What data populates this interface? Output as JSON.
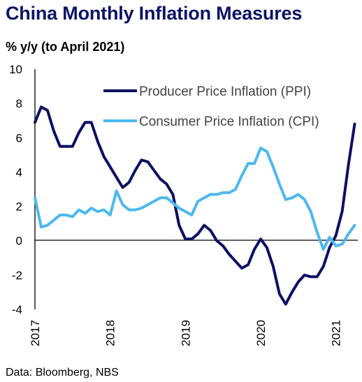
{
  "chart_data": {
    "type": "line",
    "title": "China Monthly Inflation Measures",
    "subtitle": "% y/y (to April 2021)",
    "source": "Data: Bloomberg, NBS",
    "ylim": [
      -4,
      10
    ],
    "yticks": [
      10,
      8,
      6,
      4,
      2,
      0,
      -2,
      -4
    ],
    "xlim": [
      0,
      51.5
    ],
    "xticks": [
      {
        "label": "2017",
        "index": 0
      },
      {
        "label": "2018",
        "index": 12
      },
      {
        "label": "2019",
        "index": 24
      },
      {
        "label": "2020",
        "index": 36
      },
      {
        "label": "2021",
        "index": 48
      }
    ],
    "grid": false,
    "legend_position": "top-right",
    "series": [
      {
        "name": "Producer Price Inflation (PPI)",
        "color": "#0d1063",
        "values": [
          6.9,
          7.8,
          7.6,
          6.4,
          5.5,
          5.5,
          5.5,
          6.3,
          6.9,
          6.9,
          5.8,
          4.9,
          4.3,
          3.7,
          3.1,
          3.4,
          4.1,
          4.7,
          4.6,
          4.1,
          3.6,
          3.3,
          2.7,
          0.9,
          0.1,
          0.1,
          0.4,
          0.9,
          0.6,
          0.0,
          -0.3,
          -0.8,
          -1.2,
          -1.6,
          -1.4,
          -0.5,
          0.1,
          -0.4,
          -1.5,
          -3.1,
          -3.7,
          -3.0,
          -2.4,
          -2.0,
          -2.1,
          -2.1,
          -1.5,
          -0.4,
          0.3,
          1.7,
          4.4,
          6.8
        ]
      },
      {
        "name": "Consumer Price Inflation (CPI)",
        "color": "#4db8f0",
        "values": [
          2.5,
          0.8,
          0.9,
          1.2,
          1.5,
          1.5,
          1.4,
          1.8,
          1.6,
          1.9,
          1.7,
          1.8,
          1.5,
          2.9,
          2.1,
          1.8,
          1.8,
          1.9,
          2.1,
          2.3,
          2.5,
          2.5,
          2.2,
          1.9,
          1.7,
          1.5,
          2.3,
          2.5,
          2.7,
          2.7,
          2.8,
          2.8,
          3.0,
          3.8,
          4.5,
          4.5,
          5.4,
          5.2,
          4.3,
          3.3,
          2.4,
          2.5,
          2.7,
          2.4,
          1.7,
          0.5,
          -0.5,
          0.2,
          -0.3,
          -0.2,
          0.4,
          0.9
        ]
      }
    ]
  }
}
